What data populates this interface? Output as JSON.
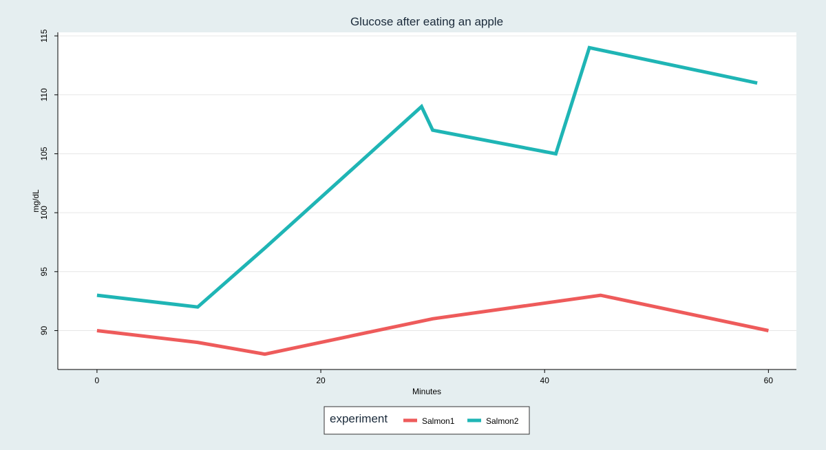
{
  "chart_data": {
    "type": "line",
    "title": "Glucose after eating an apple",
    "xlabel": "Minutes",
    "ylabel": "mg/dL",
    "xlim": [
      -3.5,
      62.5
    ],
    "ylim": [
      86.7,
      115.3
    ],
    "x_ticks": [
      0,
      20,
      40,
      60
    ],
    "y_ticks": [
      90,
      95,
      100,
      105,
      110,
      115
    ],
    "grid": true,
    "legend": {
      "title": "experiment",
      "position": "bottom"
    },
    "series": [
      {
        "name": "Salmon1",
        "color": "#ee5b5b",
        "points": [
          [
            0,
            90
          ],
          [
            9,
            89
          ],
          [
            15,
            88
          ],
          [
            30,
            91
          ],
          [
            45,
            93
          ],
          [
            60,
            90
          ]
        ]
      },
      {
        "name": "Salmon2",
        "color": "#1fb5b5",
        "points": [
          [
            0,
            93
          ],
          [
            9,
            92
          ],
          [
            15,
            97
          ],
          [
            29,
            109
          ],
          [
            30,
            107
          ],
          [
            41,
            105
          ],
          [
            44,
            114
          ],
          [
            59,
            111
          ]
        ]
      }
    ]
  }
}
